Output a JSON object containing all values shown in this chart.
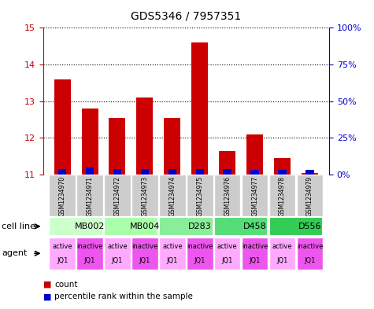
{
  "title": "GDS5346 / 7957351",
  "samples": [
    "GSM1234970",
    "GSM1234971",
    "GSM1234972",
    "GSM1234973",
    "GSM1234974",
    "GSM1234975",
    "GSM1234976",
    "GSM1234977",
    "GSM1234978",
    "GSM1234979"
  ],
  "count_values": [
    13.6,
    12.8,
    12.55,
    13.1,
    12.55,
    14.6,
    11.65,
    12.1,
    11.45,
    11.05
  ],
  "percentile_values": [
    4,
    5,
    4,
    4,
    4,
    4,
    4,
    3,
    3,
    3
  ],
  "ymin": 11,
  "ymax": 15,
  "yticks": [
    11,
    12,
    13,
    14,
    15
  ],
  "yright_ticks": [
    0,
    25,
    50,
    75,
    100
  ],
  "yright_tick_pos": [
    11,
    12,
    13,
    14,
    15
  ],
  "cell_lines": [
    {
      "label": "MB002",
      "start": 0,
      "end": 2,
      "color": "#ccffcc"
    },
    {
      "label": "MB004",
      "start": 2,
      "end": 4,
      "color": "#aaffaa"
    },
    {
      "label": "D283",
      "start": 4,
      "end": 6,
      "color": "#88ee99"
    },
    {
      "label": "D458",
      "start": 6,
      "end": 8,
      "color": "#55dd77"
    },
    {
      "label": "D556",
      "start": 8,
      "end": 10,
      "color": "#33cc55"
    }
  ],
  "agents": [
    {
      "label": "active\nJQ1",
      "color": "#ffaaff"
    },
    {
      "label": "inactive\nJQ1",
      "color": "#ee55ee"
    },
    {
      "label": "active\nJQ1",
      "color": "#ffaaff"
    },
    {
      "label": "inactive\nJQ1",
      "color": "#ee55ee"
    },
    {
      "label": "active\nJQ1",
      "color": "#ffaaff"
    },
    {
      "label": "inactive\nJQ1",
      "color": "#ee55ee"
    },
    {
      "label": "active\nJQ1",
      "color": "#ffaaff"
    },
    {
      "label": "inactive\nJQ1",
      "color": "#ee55ee"
    },
    {
      "label": "active\nJQ1",
      "color": "#ffaaff"
    },
    {
      "label": "inactive\nJQ1",
      "color": "#ee55ee"
    }
  ],
  "bar_color_red": "#cc0000",
  "bar_color_blue": "#0000cc",
  "bar_width": 0.6,
  "bg_color": "#ffffff",
  "left_tick_color": "#cc0000",
  "right_tick_color": "#0000cc",
  "grid_color": "#000000",
  "sample_bg_color": "#cccccc"
}
